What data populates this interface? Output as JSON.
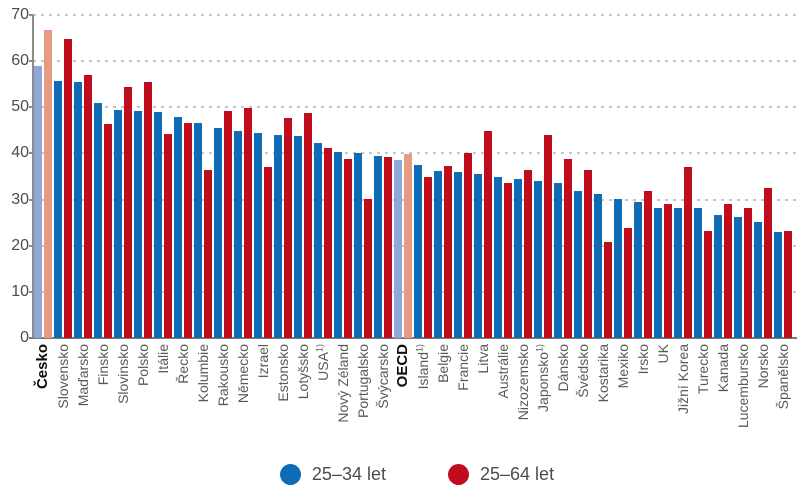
{
  "chart_data": {
    "type": "bar",
    "title": "",
    "xlabel": "",
    "ylabel": "",
    "ylim": [
      0,
      70
    ],
    "y_ticks": [
      0,
      10,
      20,
      30,
      40,
      50,
      60,
      70
    ],
    "grid": "horizontal-dashed",
    "legend_position": "bottom-center",
    "colors": {
      "series_25_34": "#0d6cb5",
      "series_25_64": "#c00d1d",
      "highlight_25_34": "#8ea9d8",
      "highlight_25_64": "#e49b81",
      "gridline": "#c6c6c6",
      "axis": "#8c8c8c",
      "tick_label": "#4c4c4c",
      "category_label": "#595959"
    },
    "categories": [
      {
        "label": "Česko",
        "bold": true,
        "highlight": true
      },
      {
        "label": "Slovensko"
      },
      {
        "label": "Maďarsko"
      },
      {
        "label": "Finsko"
      },
      {
        "label": "Slovinsko"
      },
      {
        "label": "Polsko"
      },
      {
        "label": "Itálie"
      },
      {
        "label": "Řecko"
      },
      {
        "label": "Kolumbie"
      },
      {
        "label": "Rakousko"
      },
      {
        "label": "Německo"
      },
      {
        "label": "Izrael"
      },
      {
        "label": "Estonsko"
      },
      {
        "label": "Lotyšsko"
      },
      {
        "label": "USA",
        "note": "1)"
      },
      {
        "label": "Nový Zéland"
      },
      {
        "label": "Portugalsko"
      },
      {
        "label": "Švýcarsko"
      },
      {
        "label": "OECD",
        "bold": true,
        "highlight": true
      },
      {
        "label": "Island",
        "note": "1)"
      },
      {
        "label": "Belgie"
      },
      {
        "label": "Francie"
      },
      {
        "label": "Litva"
      },
      {
        "label": "Austrálie"
      },
      {
        "label": "Nizozemsko"
      },
      {
        "label": "Japonsko",
        "note": "1)"
      },
      {
        "label": "Dánsko"
      },
      {
        "label": "Švédsko"
      },
      {
        "label": "Kostarika"
      },
      {
        "label": "Mexiko"
      },
      {
        "label": "Irsko"
      },
      {
        "label": "UK"
      },
      {
        "label": "Jižní Korea"
      },
      {
        "label": "Turecko"
      },
      {
        "label": "Kanada"
      },
      {
        "label": "Lucembursko"
      },
      {
        "label": "Norsko"
      },
      {
        "label": "Španělsko"
      }
    ],
    "series": [
      {
        "name": "25–34 let",
        "values": [
          59.0,
          55.8,
          55.5,
          51.0,
          49.5,
          49.3,
          49.0,
          48.0,
          46.6,
          45.6,
          44.8,
          44.4,
          44.1,
          43.8,
          42.3,
          40.4,
          40.2,
          39.5,
          38.6,
          37.5,
          36.1,
          35.9,
          35.5,
          34.9,
          34.5,
          34.0,
          33.6,
          31.9,
          31.1,
          30.2,
          29.5,
          28.2,
          28.2,
          28.1,
          26.6,
          26.2,
          25.2,
          22.9
        ]
      },
      {
        "name": "25–64 let",
        "values": [
          66.8,
          64.8,
          57.0,
          46.3,
          54.3,
          55.4,
          44.3,
          46.6,
          36.5,
          49.1,
          49.8,
          37.1,
          47.6,
          48.7,
          41.1,
          38.8,
          30.1,
          39.3,
          39.9,
          34.9,
          37.3,
          40.2,
          44.8,
          33.6,
          36.5,
          43.9,
          38.7,
          36.4,
          20.7,
          23.9,
          31.9,
          29.1,
          37.1,
          23.2,
          29.1,
          28.2,
          32.4,
          23.1
        ]
      }
    ],
    "legend": [
      {
        "label": "25–34 let",
        "color": "#0d6cb5"
      },
      {
        "label": "25–64 let",
        "color": "#c00d1d"
      }
    ]
  }
}
